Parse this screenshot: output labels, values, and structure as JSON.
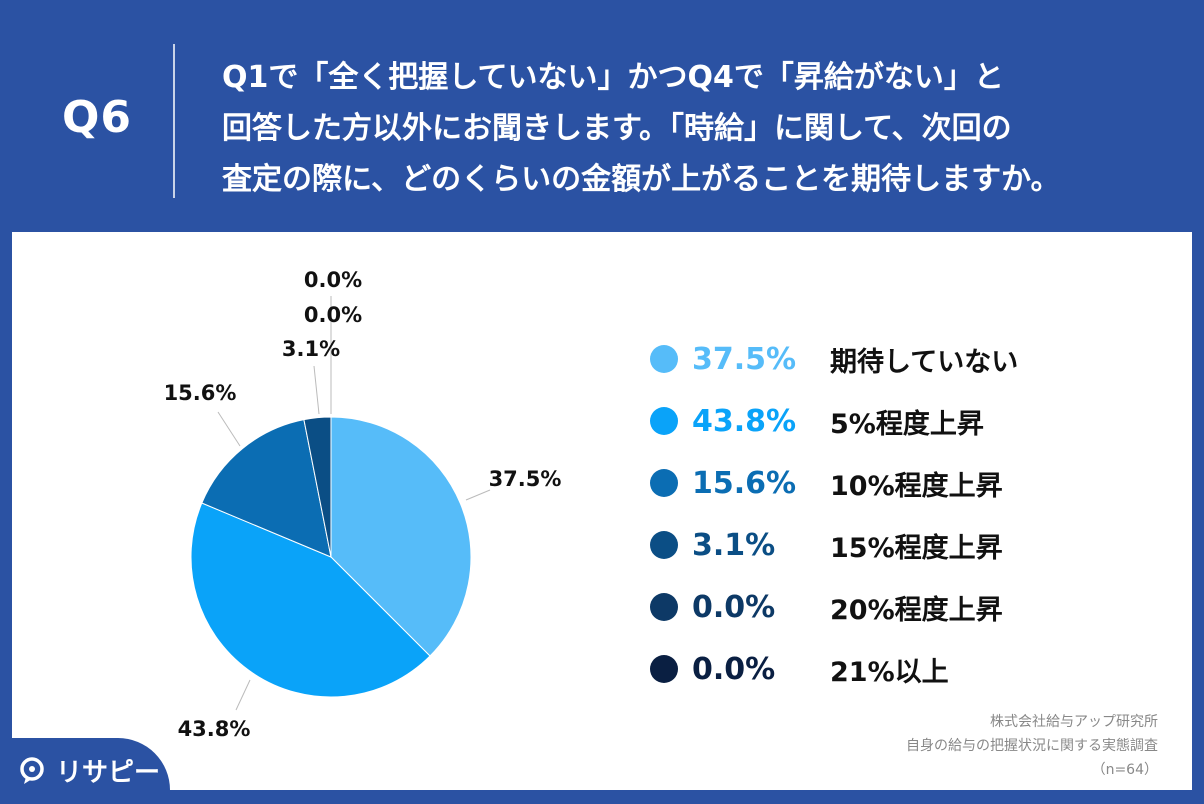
{
  "header": {
    "question_id": "Q6",
    "question_lines": [
      "Q1で「全く把握していない」かつQ4で「昇給がない」と",
      "回答した方以外にお聞きします。「時給」に関して、次回の",
      "査定の際に、どのくらいの金額が上がることを期待しますか。"
    ]
  },
  "chart_data": {
    "type": "pie",
    "categories": [
      "期待していない",
      "5%程度上昇",
      "10%程度上昇",
      "15%程度上昇",
      "20%程度上昇",
      "21%以上"
    ],
    "values": [
      37.5,
      43.8,
      15.6,
      3.1,
      0.0,
      0.0
    ],
    "value_labels": [
      "37.5%",
      "43.8%",
      "15.6%",
      "3.1%",
      "0.0%",
      "0.0%"
    ],
    "colors": [
      "#56bcf9",
      "#0aa3f9",
      "#0b6db3",
      "#0b4e85",
      "#0d3966",
      "#0a1f42"
    ],
    "start_angle_deg": 0,
    "direction": "clockwise",
    "legend_placement": "right"
  },
  "source": {
    "lines": [
      "株式会社給与アップ研究所",
      "自身の給与の把握状況に関する実態調査",
      "（n=64）"
    ]
  },
  "logo": {
    "text": "リサピー",
    "icon": "speech-bubble-icon"
  }
}
